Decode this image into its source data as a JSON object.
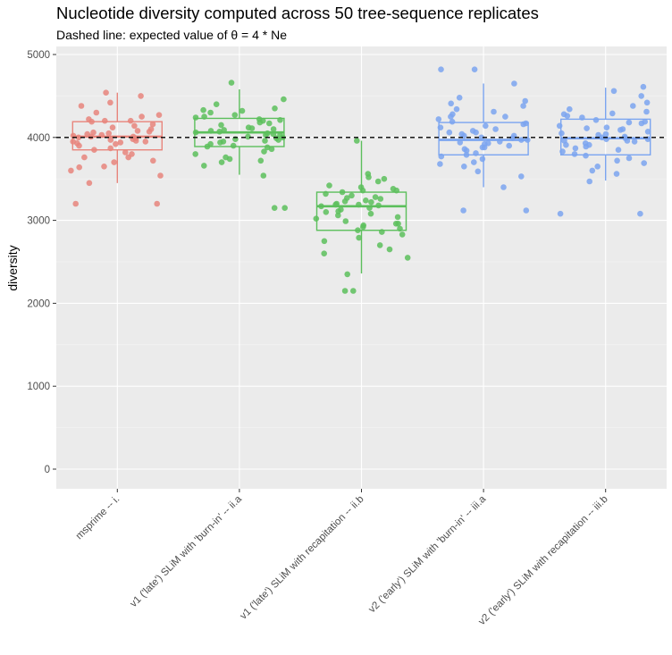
{
  "chart_data": {
    "type": "boxplot",
    "title": "Nucleotide diversity computed across 50 tree-sequence replicates",
    "subtitle": "Dashed line: expected value of θ = 4 * Ne",
    "xlabel": "",
    "ylabel": "diversity",
    "ylim": [
      -200,
      5000
    ],
    "yticks": [
      0,
      1000,
      2000,
      3000,
      4000,
      5000
    ],
    "reference_line": {
      "value": 4000,
      "style": "dashed"
    },
    "grid": true,
    "categories": [
      "msprime -- i.",
      "v1 ('late') SLiM with 'burn-in' -- ii.a",
      "v1 ('late') SLiM with recapitation -- ii.b",
      "v2 ('early') SLiM with 'burn-in' -- iii.a",
      "v2 ('early') SLiM with recapitation -- iii.b"
    ],
    "colors": [
      "#E8857C",
      "#5CBF5C",
      "#5CBF5C",
      "#7BA5F0",
      "#7BA5F0"
    ],
    "boxes": [
      {
        "min": 3450,
        "q1": 3850,
        "median": 4010,
        "q3": 4190,
        "max": 4540
      },
      {
        "min": 3550,
        "q1": 3890,
        "median": 4060,
        "q3": 4230,
        "max": 4580
      },
      {
        "min": 2360,
        "q1": 2880,
        "median": 3170,
        "q3": 3340,
        "max": 3960
      },
      {
        "min": 3400,
        "q1": 3790,
        "median": 3970,
        "q3": 4180,
        "max": 4650
      },
      {
        "min": 3480,
        "q1": 3790,
        "median": 3990,
        "q3": 4220,
        "max": 4600
      }
    ],
    "points": [
      [
        4500,
        4540,
        4420,
        4380,
        4300,
        4270,
        4250,
        4220,
        4200,
        4190,
        4160,
        4140,
        4120,
        4100,
        4080,
        4060,
        4050,
        4040,
        4030,
        4020,
        4010,
        4000,
        3990,
        3980,
        3970,
        3960,
        3950,
        3940,
        3920,
        3900,
        3870,
        3850,
        3820,
        3800,
        3760,
        3720,
        3700,
        3650,
        3600,
        3540,
        3450,
        3200,
        3200,
        3950,
        4010,
        4070,
        3930,
        3760,
        3640,
        4200
      ],
      [
        4660,
        4460,
        4400,
        4350,
        4330,
        4300,
        4270,
        4250,
        4240,
        4220,
        4210,
        4200,
        4170,
        4150,
        4120,
        4100,
        4090,
        4080,
        4060,
        4050,
        4040,
        4030,
        4010,
        4000,
        3990,
        3980,
        3970,
        3950,
        3940,
        3920,
        3900,
        3880,
        3860,
        3830,
        3800,
        3760,
        3740,
        3720,
        3700,
        3660,
        3540,
        3150,
        3150,
        4180,
        4070,
        3960,
        4030,
        3890,
        4110,
        4320
      ],
      [
        3960,
        3560,
        3500,
        3470,
        3420,
        3400,
        3380,
        3360,
        3340,
        3320,
        3300,
        3280,
        3260,
        3240,
        3230,
        3220,
        3200,
        3190,
        3180,
        3170,
        3150,
        3130,
        3110,
        3080,
        3060,
        3040,
        3020,
        2990,
        2960,
        2940,
        2920,
        2900,
        2880,
        2860,
        2830,
        2790,
        2750,
        2700,
        2650,
        2600,
        2550,
        2350,
        2150,
        2150,
        3270,
        3190,
        3360,
        2960,
        3100,
        3520
      ],
      [
        4820,
        4820,
        4650,
        4480,
        4440,
        4410,
        4380,
        4340,
        4310,
        4280,
        4250,
        4220,
        4190,
        4170,
        4140,
        4120,
        4100,
        4080,
        4060,
        4040,
        4020,
        4000,
        3990,
        3970,
        3950,
        3940,
        3920,
        3900,
        3880,
        3860,
        3840,
        3810,
        3790,
        3770,
        3740,
        3700,
        3680,
        3650,
        3590,
        3530,
        3400,
        3120,
        3120,
        4160,
        4060,
        3970,
        3880,
        4020,
        4250,
        3930
      ],
      [
        4610,
        4560,
        4500,
        4420,
        4380,
        4340,
        4310,
        4290,
        4260,
        4240,
        4210,
        4190,
        4170,
        4140,
        4120,
        4100,
        4090,
        4070,
        4050,
        4030,
        4010,
        4000,
        3990,
        3980,
        3960,
        3950,
        3930,
        3910,
        3890,
        3870,
        3850,
        3830,
        3800,
        3780,
        3750,
        3720,
        3690,
        3650,
        3600,
        3560,
        3470,
        3080,
        3080,
        4180,
        4040,
        3960,
        4110,
        3910,
        4280,
        3980
      ]
    ]
  }
}
